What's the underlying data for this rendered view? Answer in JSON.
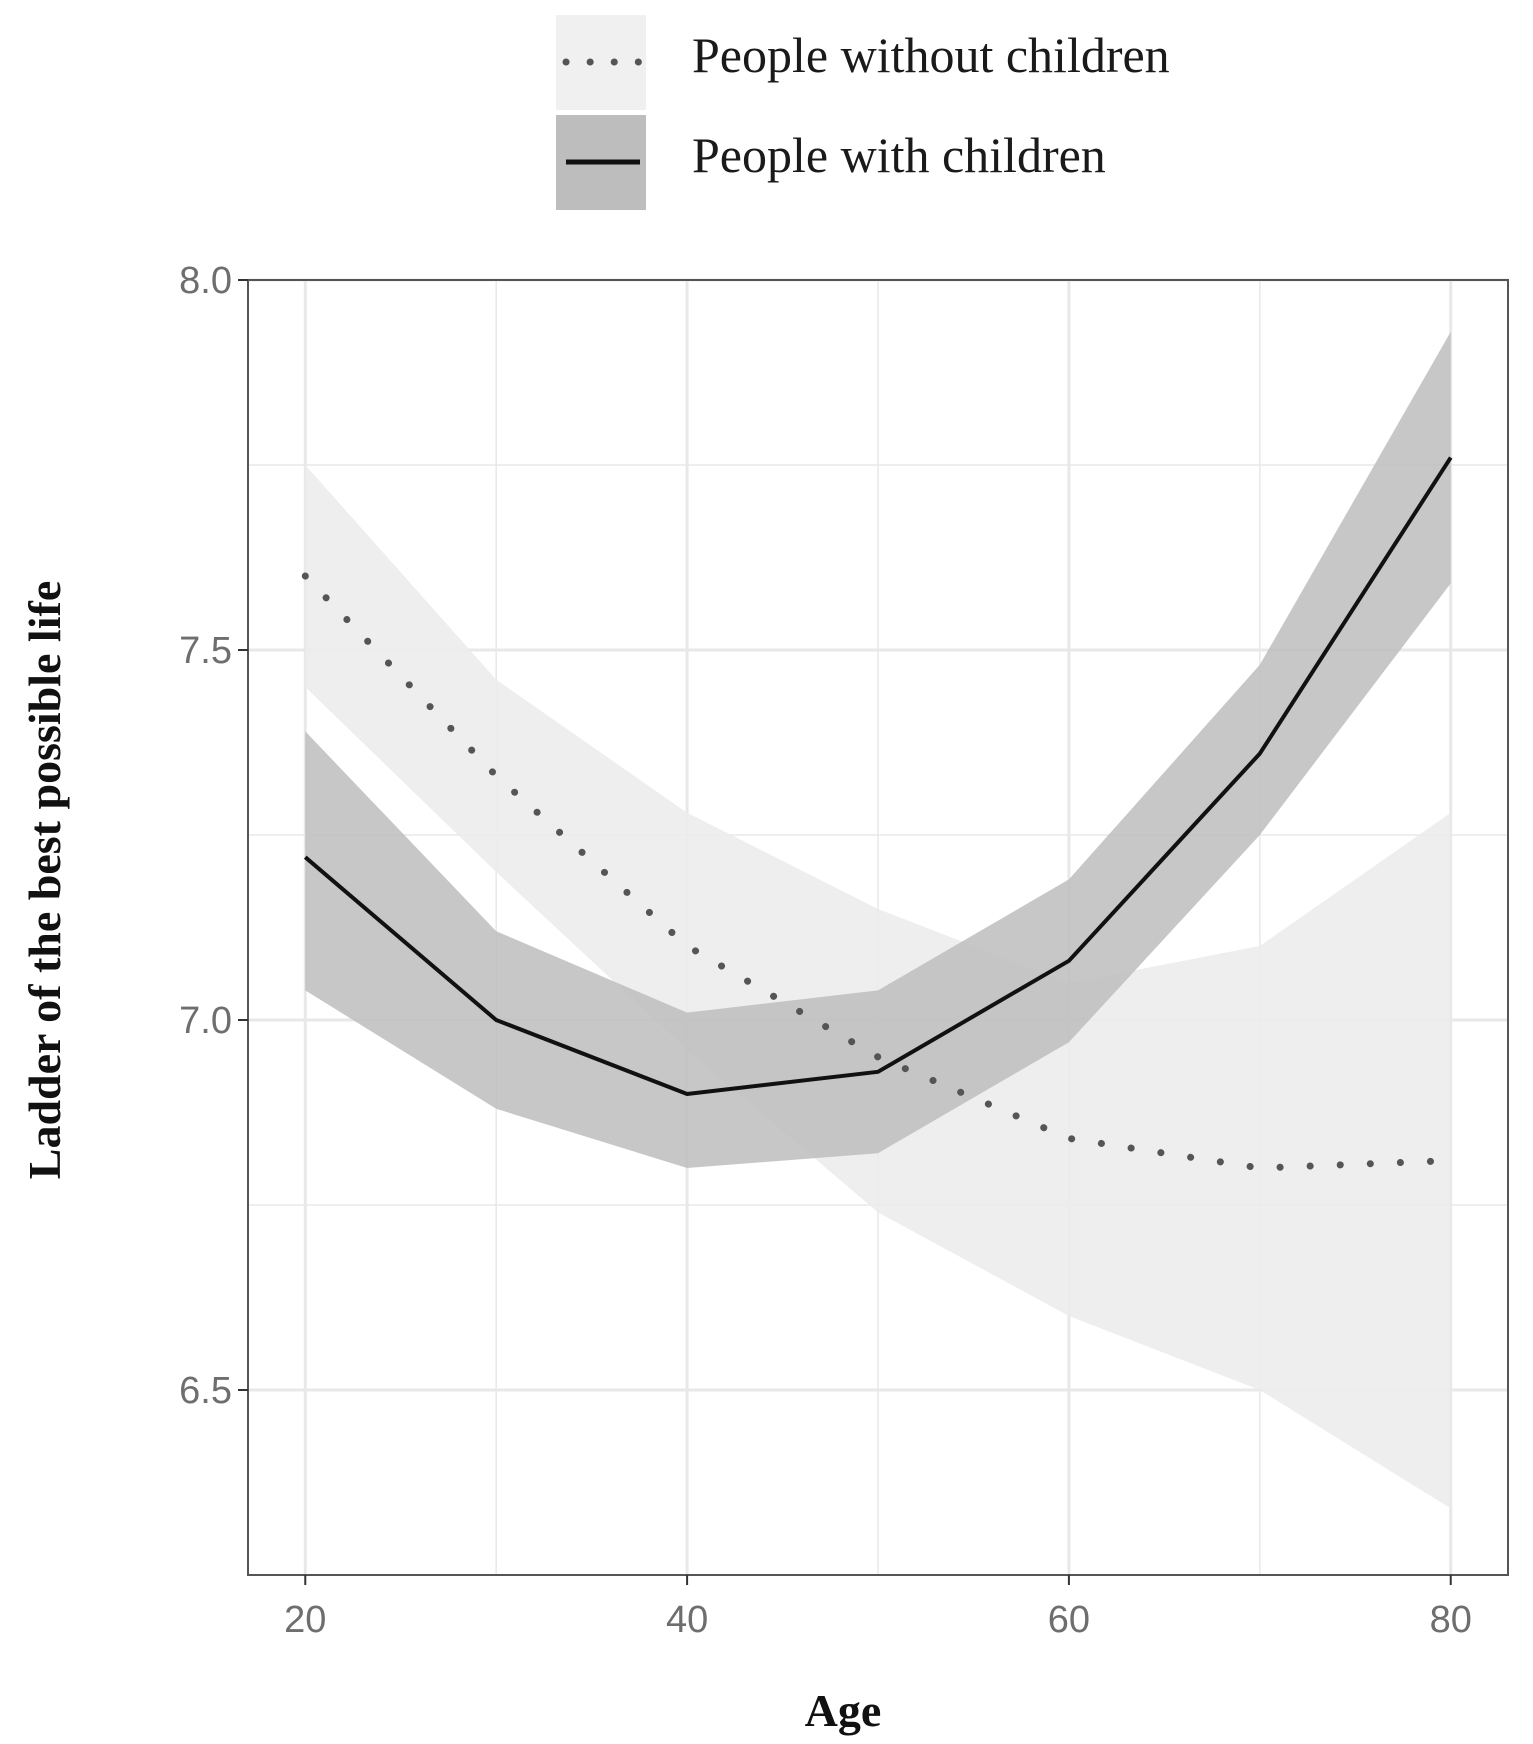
{
  "colors": {
    "ribbon_without": "#ececec",
    "ribbon_with": "#bdbdbd",
    "line_without": "#555555",
    "line_with": "#111111",
    "grid": "#e8e8e8",
    "panel_border": "#555555",
    "legend_key_without_bg": "#f0f0f0",
    "legend_key_with_bg": "#bdbdbd"
  },
  "chart_data": {
    "type": "line",
    "title": "",
    "xlabel": "Age",
    "ylabel": "Ladder of the best possible life",
    "xlim": [
      17,
      83
    ],
    "ylim": [
      6.25,
      8.0
    ],
    "x_ticks": [
      20,
      40,
      60,
      80
    ],
    "x_tick_labels": [
      "20",
      "40",
      "60",
      "80"
    ],
    "y_ticks": [
      6.5,
      7.0,
      7.5,
      8.0
    ],
    "y_tick_labels": [
      "6.5",
      "7.0",
      "7.5",
      "8.0"
    ],
    "grid": true,
    "legend_position": "top",
    "x": [
      20,
      30,
      40,
      50,
      60,
      70,
      80
    ],
    "series": [
      {
        "name": "People without children",
        "line_style": "dotted",
        "values": [
          7.6,
          7.33,
          7.1,
          6.95,
          6.84,
          6.8,
          6.81
        ],
        "lower": [
          7.45,
          7.2,
          6.96,
          6.74,
          6.6,
          6.5,
          6.34
        ],
        "upper": [
          7.75,
          7.46,
          7.28,
          7.15,
          7.05,
          7.1,
          7.28
        ]
      },
      {
        "name": "People with children",
        "line_style": "solid",
        "values": [
          7.22,
          7.0,
          6.9,
          6.93,
          7.08,
          7.36,
          7.76
        ],
        "lower": [
          7.04,
          6.88,
          6.8,
          6.82,
          6.97,
          7.25,
          7.59
        ],
        "upper": [
          7.39,
          7.12,
          7.01,
          7.04,
          7.19,
          7.48,
          7.93
        ]
      }
    ]
  }
}
